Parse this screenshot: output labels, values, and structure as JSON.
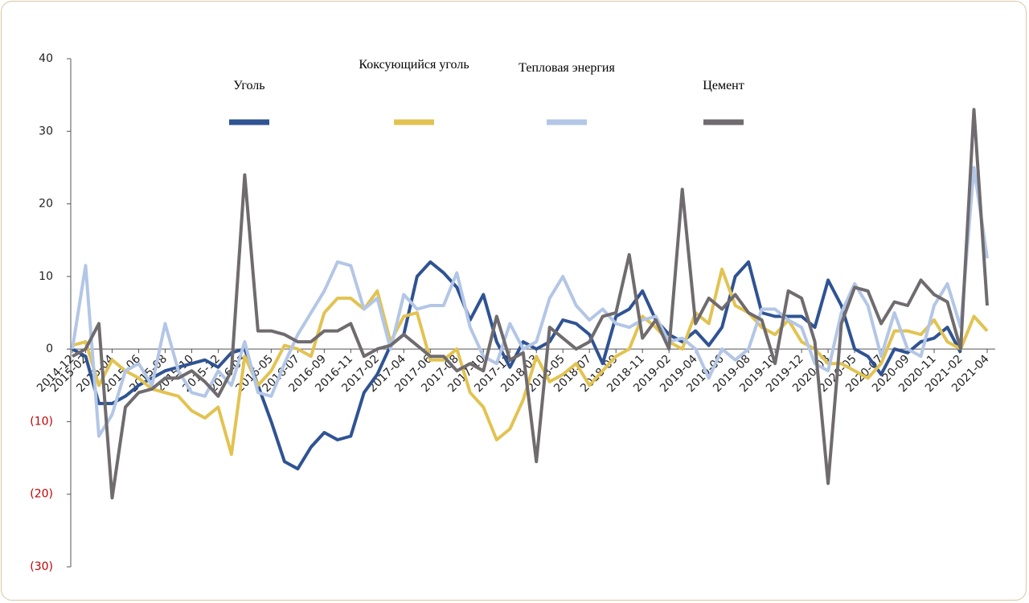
{
  "chart_data": {
    "type": "line",
    "categories": [
      "2014-12",
      "2015-02",
      null,
      "2015-04",
      null,
      "2015-06",
      null,
      "2015-08",
      null,
      "2015-10",
      null,
      "2015-12",
      null,
      "2016-03",
      null,
      "2016-05",
      null,
      "2016-07",
      null,
      "2016-09",
      null,
      "2016-11",
      null,
      "2017-02",
      null,
      "2017-04",
      null,
      "2017-06",
      null,
      "2017-08",
      null,
      "2017-10",
      null,
      "2017-12",
      null,
      "2018-03",
      null,
      "2018-05",
      null,
      "2018-07",
      null,
      "2018-09",
      null,
      "2018-11",
      null,
      "2019-02",
      null,
      "2019-04",
      null,
      "2019-06",
      null,
      "2019-08",
      null,
      "2019-10",
      null,
      "2019-12",
      null,
      "2020-03",
      null,
      "2020-05",
      null,
      "2020-07",
      null,
      "2020-09",
      null,
      "2020-11",
      null,
      "2021-02",
      null,
      "2021-04"
    ],
    "series": [
      {
        "name": "Уголь",
        "color": "#2f5393",
        "values": [
          0,
          -1,
          -7.5,
          -7.5,
          -6.5,
          -5,
          -4,
          -3,
          -2.5,
          -2,
          -1.5,
          -2.5,
          -0.5,
          0,
          -5,
          -10,
          -15.5,
          -16.5,
          -13.5,
          -11.5,
          -12.5,
          -12,
          -6,
          -3.5,
          0.5,
          2,
          10,
          12,
          10.5,
          8.5,
          4,
          7.5,
          1,
          -2.5,
          1,
          0,
          1,
          4,
          3.5,
          2,
          -2,
          4.5,
          5.5,
          8,
          4,
          2,
          1,
          2.5,
          0.5,
          3,
          10,
          12,
          5,
          4.5,
          4.5,
          4.5,
          3,
          9.5,
          6,
          0,
          -1,
          -3.5,
          0,
          -0.5,
          1,
          1.5,
          3,
          -0.5,
          null,
          null
        ]
      },
      {
        "name": "Коксующийся уголь",
        "color": "#e2c352",
        "values": [
          0.5,
          1,
          -5,
          -1.5,
          -3,
          -4,
          -5.5,
          -6,
          -6.5,
          -8.5,
          -9.5,
          -8,
          -14.5,
          -1,
          -5,
          -3,
          0.5,
          0,
          -1,
          5,
          7,
          7,
          5.5,
          8,
          1,
          4.5,
          5,
          -1.5,
          -1.5,
          0,
          -6,
          -8,
          -12.5,
          -11,
          -7,
          -1,
          -4.5,
          -3.5,
          -2,
          -5,
          -3,
          -1,
          0,
          4.5,
          3,
          1,
          0,
          5,
          3.5,
          11,
          6,
          5,
          3,
          2,
          4,
          1,
          0,
          -2,
          -2,
          -3,
          -4,
          -2,
          2.5,
          2.5,
          2,
          4,
          1,
          0,
          4.5,
          2.5
        ]
      },
      {
        "name": "Тепловая энергия",
        "color": "#b3c6e6",
        "values": [
          0,
          11.5,
          -12,
          -9,
          -3,
          -2,
          -5,
          3.5,
          -3,
          -6,
          -6.5,
          -3,
          -5,
          1,
          -6,
          -6.5,
          -2,
          2,
          5,
          8,
          12,
          11.5,
          5.5,
          7,
          0,
          7.5,
          5.5,
          6,
          6,
          10.5,
          3,
          -1,
          -2,
          3.5,
          0,
          1,
          7,
          10,
          6,
          4,
          5.5,
          3.5,
          3,
          4,
          4.5,
          1,
          1.5,
          0,
          -4,
          0,
          -1.5,
          0,
          5.5,
          5.5,
          4,
          3,
          -2,
          -3,
          5,
          9,
          6,
          -1,
          5,
          0,
          -1,
          6,
          9,
          3,
          25,
          12.5
        ]
      },
      {
        "name": "Цемент",
        "color": "#6f6b6e",
        "values": [
          -1,
          0,
          3.5,
          -20.5,
          -8,
          -6,
          -5.5,
          -4,
          -4,
          -3,
          -4.5,
          -6.5,
          -3,
          24,
          2.5,
          2.5,
          2,
          1,
          1,
          2.5,
          2.5,
          3.5,
          -1,
          0,
          0.5,
          2,
          0.5,
          -1,
          -1,
          -3,
          -2,
          -3,
          4.5,
          -1.5,
          -0.5,
          -15.5,
          3,
          1.5,
          0,
          1,
          4.5,
          5,
          13,
          1.5,
          4,
          0,
          22,
          3.5,
          7,
          5.5,
          7.5,
          5,
          4,
          -2,
          8,
          7,
          1,
          -18.5,
          3.5,
          8.5,
          8,
          3.5,
          6.5,
          6,
          9.5,
          7.5,
          6.5,
          0,
          33,
          6
        ]
      }
    ],
    "ylim": [
      -30,
      40
    ],
    "yticks": [
      {
        "value": -30,
        "label": "(30)"
      },
      {
        "value": -20,
        "label": "(20)"
      },
      {
        "value": -10,
        "label": "(10)"
      },
      0,
      10,
      20,
      30,
      40
    ]
  }
}
